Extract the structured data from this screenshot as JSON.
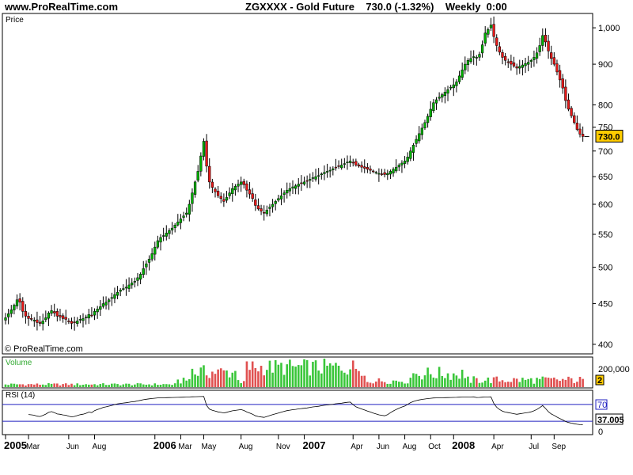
{
  "header": {
    "site": "www.ProRealTime.com",
    "symbol": "ZGXXXX - Gold Future",
    "quote": "730.0 (-1.32%)",
    "period": "Weekly",
    "time": "0:00"
  },
  "colors": {
    "up": "#00b000",
    "down": "#e81818",
    "rsi_line": "#2020c0",
    "price_tag": "#ffcc00",
    "vol_up": "#3ac63a",
    "vol_down": "#e05050"
  },
  "chart_data": [
    {
      "type": "line",
      "title": "Price",
      "watermark": "© ProRealTime.com",
      "ylim": [
        390,
        1040
      ],
      "yticks": [
        400,
        450,
        500,
        550,
        600,
        650,
        700,
        750,
        800,
        900,
        1000
      ],
      "ytick_labels": [
        "400",
        "450",
        "500",
        "550",
        "600",
        "650",
        "700",
        "750",
        "800",
        "900",
        "1,000"
      ],
      "last_value": "730.0",
      "xlabels": [
        "2005",
        "Mar",
        "Jun",
        "Aug",
        "2006",
        "Mar",
        "May",
        "Aug",
        "Nov",
        "2007",
        "Apr",
        "Jun",
        "Aug",
        "Oct",
        "2008",
        "Apr",
        "Jul",
        "Sep"
      ],
      "xlabel_week": [
        0,
        8,
        22,
        31,
        52,
        61,
        69,
        82,
        95,
        104,
        121,
        130,
        139,
        148,
        156,
        170,
        183,
        191
      ],
      "series": [
        {
          "values": [
            432,
            437,
            442,
            448,
            455,
            452,
            440,
            434,
            431,
            430,
            429,
            426,
            425,
            428,
            432,
            438,
            441,
            438,
            434,
            433,
            431,
            430,
            427,
            425,
            426,
            428,
            430,
            431,
            433,
            436,
            435,
            440,
            443,
            446,
            450,
            452,
            455,
            458,
            462,
            465,
            468,
            470,
            472,
            475,
            478,
            480,
            485,
            490,
            498,
            505,
            512,
            520,
            530,
            540,
            545,
            548,
            552,
            556,
            560,
            565,
            570,
            575,
            580,
            585,
            600,
            620,
            640,
            660,
            690,
            720,
            670,
            640,
            630,
            622,
            615,
            610,
            605,
            612,
            620,
            628,
            632,
            636,
            640,
            635,
            625,
            618,
            610,
            598,
            592,
            588,
            585,
            590,
            595,
            600,
            605,
            610,
            615,
            620,
            625,
            628,
            631,
            633,
            636,
            638,
            640,
            642,
            645,
            648,
            650,
            652,
            655,
            658,
            660,
            662,
            665,
            668,
            670,
            672,
            675,
            678,
            680,
            676,
            672,
            670,
            668,
            666,
            664,
            662,
            660,
            658,
            656,
            655,
            654,
            656,
            660,
            664,
            668,
            672,
            676,
            680,
            688,
            700,
            712,
            724,
            736,
            748,
            760,
            774,
            790,
            805,
            812,
            818,
            824,
            830,
            836,
            842,
            848,
            855,
            870,
            885,
            900,
            910,
            915,
            920,
            918,
            926,
            952,
            985,
            995,
            1008,
            975,
            950,
            932,
            918,
            910,
            905,
            900,
            895,
            890,
            894,
            898,
            902,
            905,
            910,
            918,
            930,
            950,
            978,
            960,
            935,
            915,
            900,
            880,
            860,
            840,
            810,
            790,
            775,
            760,
            745,
            735,
            730
          ]
        }
      ]
    },
    {
      "type": "bar",
      "title": "Volume",
      "yticks": [
        200000
      ],
      "ytick_labels": [
        "200,000"
      ],
      "last_value": "2"
    },
    {
      "type": "line",
      "title": "RSI (14)",
      "ylim": [
        0,
        100
      ],
      "levels": [
        30,
        70
      ],
      "yticks": [
        0,
        70
      ],
      "ytick_labels": [
        "0",
        "70"
      ],
      "last_value": "37.005"
    }
  ]
}
